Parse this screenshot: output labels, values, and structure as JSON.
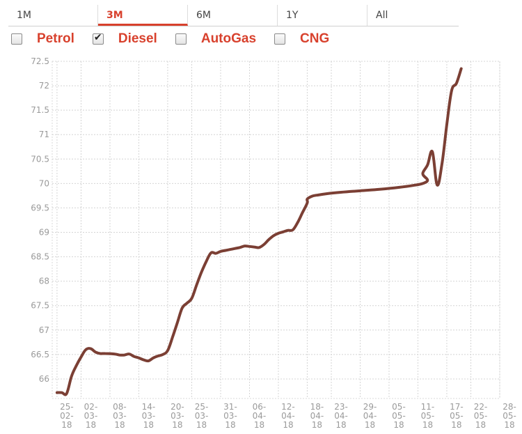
{
  "tabs": [
    {
      "label": "1M"
    },
    {
      "label": "3M"
    },
    {
      "label": "6M"
    },
    {
      "label": "1Y"
    },
    {
      "label": "All"
    }
  ],
  "active_tab": "3M",
  "filters": [
    {
      "label": "Petrol",
      "checked": false
    },
    {
      "label": "Diesel",
      "checked": true
    },
    {
      "label": "AutoGas",
      "checked": false
    },
    {
      "label": "CNG",
      "checked": false
    }
  ],
  "chart_data": {
    "type": "line",
    "title": "",
    "xlabel": "",
    "ylabel": "",
    "grid": true,
    "line_color": "#7b3f34",
    "ylim": [
      65.6,
      72.5
    ],
    "xlim": [
      "2018-02-24",
      "2018-05-28"
    ],
    "y_ticks": [
      "66",
      "66.5",
      "67",
      "67.5",
      "68",
      "68.5",
      "69",
      "69.5",
      "70",
      "70.5",
      "71",
      "71.5",
      "72",
      "72.5"
    ],
    "x_ticks": [
      {
        "date": "2018-02-25",
        "label": [
          "25-",
          "02-",
          "18"
        ]
      },
      {
        "date": "2018-03-02",
        "label": [
          "02-",
          "03-",
          "18"
        ]
      },
      {
        "date": "2018-03-08",
        "label": [
          "08-",
          "03-",
          "18"
        ]
      },
      {
        "date": "2018-03-14",
        "label": [
          "14-",
          "03-",
          "18"
        ]
      },
      {
        "date": "2018-03-20",
        "label": [
          "20-",
          "03-",
          "18"
        ]
      },
      {
        "date": "2018-03-25",
        "label": [
          "25-",
          "03-",
          "18"
        ]
      },
      {
        "date": "2018-03-31",
        "label": [
          "31-",
          "03-",
          "18"
        ]
      },
      {
        "date": "2018-04-06",
        "label": [
          "06-",
          "04-",
          "18"
        ]
      },
      {
        "date": "2018-04-12",
        "label": [
          "12-",
          "04-",
          "18"
        ]
      },
      {
        "date": "2018-04-18",
        "label": [
          "18-",
          "04-",
          "18"
        ]
      },
      {
        "date": "2018-04-23",
        "label": [
          "23-",
          "04-",
          "18"
        ]
      },
      {
        "date": "2018-04-29",
        "label": [
          "29-",
          "04-",
          "18"
        ]
      },
      {
        "date": "2018-05-05",
        "label": [
          "05-",
          "05-",
          "18"
        ]
      },
      {
        "date": "2018-05-11",
        "label": [
          "11-",
          "05-",
          "18"
        ]
      },
      {
        "date": "2018-05-17",
        "label": [
          "17-",
          "05-",
          "18"
        ]
      },
      {
        "date": "2018-05-22",
        "label": [
          "22-",
          "05-",
          "18"
        ]
      },
      {
        "date": "2018-05-28",
        "label": [
          "28-",
          "05-",
          "18"
        ]
      }
    ],
    "series": [
      {
        "points": [
          [
            "2018-02-25",
            65.72
          ],
          [
            "2018-02-26",
            65.72
          ],
          [
            "2018-02-27",
            65.7
          ],
          [
            "2018-02-28",
            66.05
          ],
          [
            "2018-03-01",
            66.27
          ],
          [
            "2018-03-02",
            66.45
          ],
          [
            "2018-03-03",
            66.6
          ],
          [
            "2018-03-04",
            66.62
          ],
          [
            "2018-03-05",
            66.55
          ],
          [
            "2018-03-06",
            66.52
          ],
          [
            "2018-03-07",
            66.52
          ],
          [
            "2018-03-09",
            66.51
          ],
          [
            "2018-03-10",
            66.49
          ],
          [
            "2018-03-11",
            66.49
          ],
          [
            "2018-03-12",
            66.51
          ],
          [
            "2018-03-13",
            66.46
          ],
          [
            "2018-03-14",
            66.43
          ],
          [
            "2018-03-15",
            66.39
          ],
          [
            "2018-03-16",
            66.37
          ],
          [
            "2018-03-17",
            66.43
          ],
          [
            "2018-03-18",
            66.47
          ],
          [
            "2018-03-19",
            66.5
          ],
          [
            "2018-03-20",
            66.58
          ],
          [
            "2018-03-21",
            66.85
          ],
          [
            "2018-03-22",
            67.15
          ],
          [
            "2018-03-23",
            67.45
          ],
          [
            "2018-03-24",
            67.55
          ],
          [
            "2018-03-25",
            67.65
          ],
          [
            "2018-03-26",
            67.92
          ],
          [
            "2018-03-27",
            68.18
          ],
          [
            "2018-03-28",
            68.4
          ],
          [
            "2018-03-29",
            68.58
          ],
          [
            "2018-03-30",
            68.57
          ],
          [
            "2018-03-31",
            68.61
          ],
          [
            "2018-04-01",
            68.63
          ],
          [
            "2018-04-02",
            68.65
          ],
          [
            "2018-04-03",
            68.67
          ],
          [
            "2018-04-04",
            68.69
          ],
          [
            "2018-04-05",
            68.72
          ],
          [
            "2018-04-06",
            68.71
          ],
          [
            "2018-04-07",
            68.7
          ],
          [
            "2018-04-08",
            68.69
          ],
          [
            "2018-04-09",
            68.75
          ],
          [
            "2018-04-10",
            68.85
          ],
          [
            "2018-04-11",
            68.93
          ],
          [
            "2018-04-12",
            68.98
          ],
          [
            "2018-04-13",
            69.01
          ],
          [
            "2018-04-14",
            69.04
          ],
          [
            "2018-04-15",
            69.05
          ],
          [
            "2018-04-16",
            69.2
          ],
          [
            "2018-04-17",
            69.4
          ],
          [
            "2018-04-18",
            69.6
          ],
          [
            "2018-04-18",
            69.68
          ],
          [
            "2018-04-19",
            69.74
          ],
          [
            "2018-04-20",
            69.76
          ],
          [
            "2018-04-22",
            69.79
          ],
          [
            "2018-04-25",
            69.82
          ],
          [
            "2018-04-29",
            69.85
          ],
          [
            "2018-05-03",
            69.88
          ],
          [
            "2018-05-07",
            69.92
          ],
          [
            "2018-05-10",
            69.96
          ],
          [
            "2018-05-12",
            70.0
          ],
          [
            "2018-05-13",
            70.07
          ],
          [
            "2018-05-12",
            70.2
          ],
          [
            "2018-05-13",
            70.38
          ],
          [
            "2018-05-14",
            70.65
          ],
          [
            "2018-05-15",
            69.97
          ],
          [
            "2018-05-16",
            70.4
          ],
          [
            "2018-05-17",
            71.2
          ],
          [
            "2018-05-18",
            71.9
          ],
          [
            "2018-05-19",
            72.05
          ],
          [
            "2018-05-20",
            72.35
          ]
        ]
      }
    ]
  }
}
